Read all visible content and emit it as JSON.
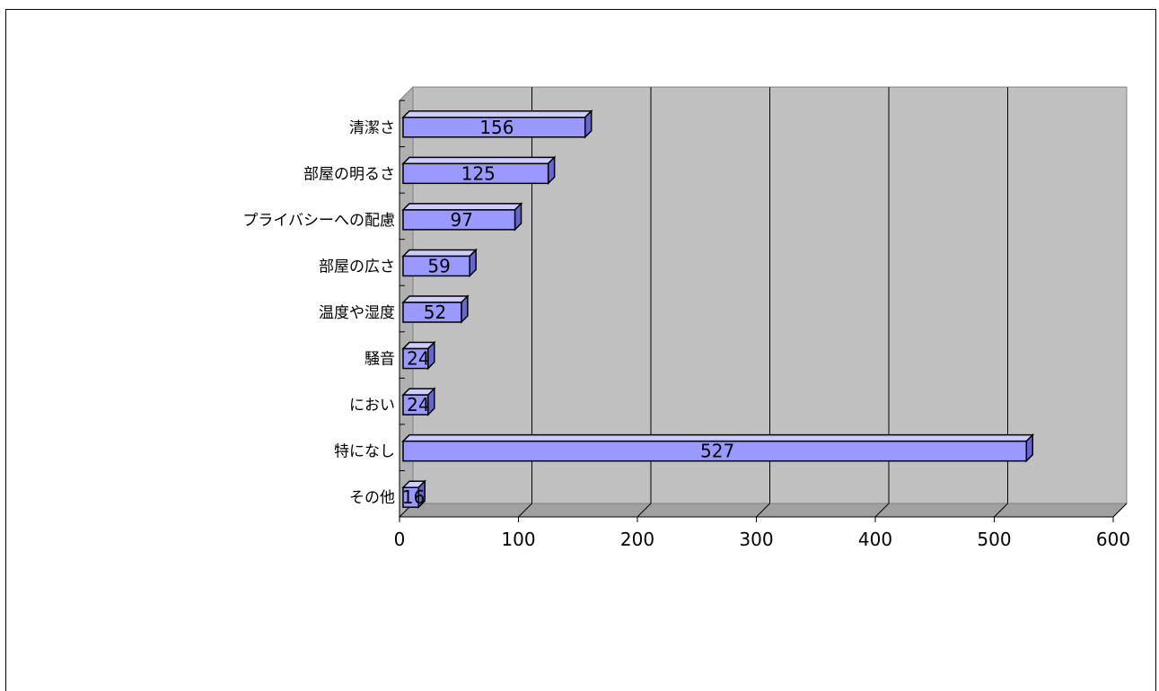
{
  "chart_data": {
    "type": "bar",
    "orientation": "horizontal",
    "style": "3d",
    "categories": [
      "清潔さ",
      "部屋の明るさ",
      "プライバシーへの配慮",
      "部屋の広さ",
      "温度や湿度",
      "騒音",
      "におい",
      "特になし",
      "その他"
    ],
    "values": [
      156,
      125,
      97,
      59,
      52,
      24,
      24,
      527,
      16
    ],
    "xlim": [
      0,
      600
    ],
    "x_ticks": [
      0,
      100,
      200,
      300,
      400,
      500,
      600
    ],
    "data_labels": true,
    "grid": "vertical",
    "colors": {
      "bar_front": "#9999ff",
      "bar_top": "#ccccff",
      "bar_side": "#6666cc",
      "plot_back": "#c0c0c0",
      "plot_floor": "#a0a0a0",
      "grid": "#000000"
    }
  }
}
